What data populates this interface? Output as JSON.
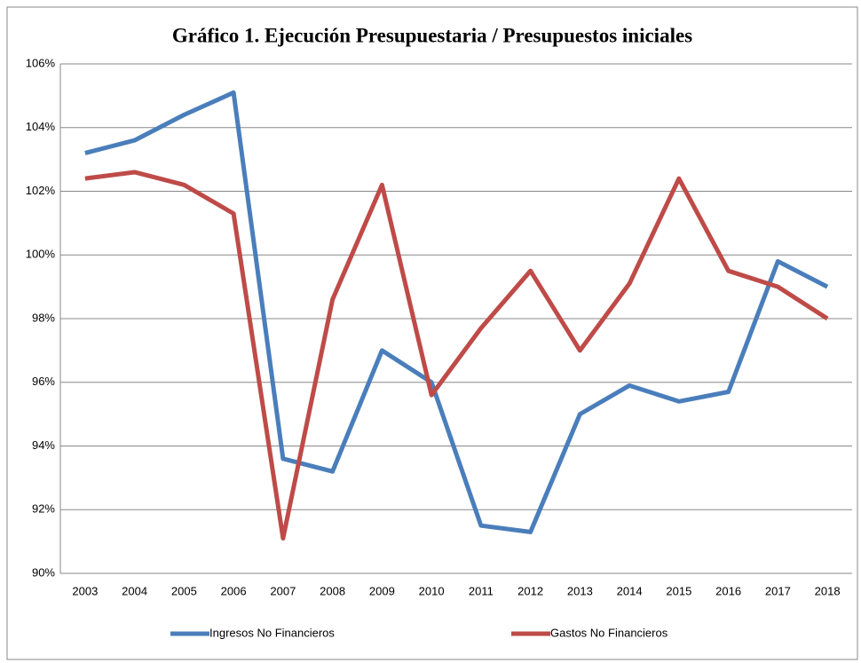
{
  "chart_data": {
    "type": "line",
    "title": "Gráfico 1. Ejecución Presupuestaria / Presupuestos iniciales",
    "categories": [
      "2003",
      "2004",
      "2005",
      "2006",
      "2007",
      "2008",
      "2009",
      "2010",
      "2011",
      "2012",
      "2013",
      "2014",
      "2015",
      "2016",
      "2017",
      "2018"
    ],
    "series": [
      {
        "name": "Ingresos No Financieros",
        "color": "#4a7ebb",
        "values": [
          103.2,
          103.6,
          104.4,
          105.1,
          93.6,
          93.2,
          97.0,
          96.0,
          91.5,
          91.3,
          95.0,
          95.9,
          95.4,
          95.7,
          99.8,
          99.0
        ]
      },
      {
        "name": "Gastos No Financieros",
        "color": "#be4b48",
        "values": [
          102.4,
          102.6,
          102.2,
          101.3,
          91.1,
          98.6,
          102.2,
          95.6,
          97.7,
          99.5,
          97.0,
          99.1,
          102.4,
          99.5,
          99.0,
          98.0
        ]
      }
    ],
    "ylim": [
      90,
      106
    ],
    "yticks": [
      {
        "value": 90,
        "label": "90%"
      },
      {
        "value": 92,
        "label": "92%"
      },
      {
        "value": 94,
        "label": "94%"
      },
      {
        "value": 96,
        "label": "96%"
      },
      {
        "value": 98,
        "label": "98%"
      },
      {
        "value": 100,
        "label": "100%"
      },
      {
        "value": 102,
        "label": "102%"
      },
      {
        "value": 104,
        "label": "104%"
      },
      {
        "value": 106,
        "label": "106%"
      }
    ],
    "grid": true,
    "legend": "bottom"
  }
}
